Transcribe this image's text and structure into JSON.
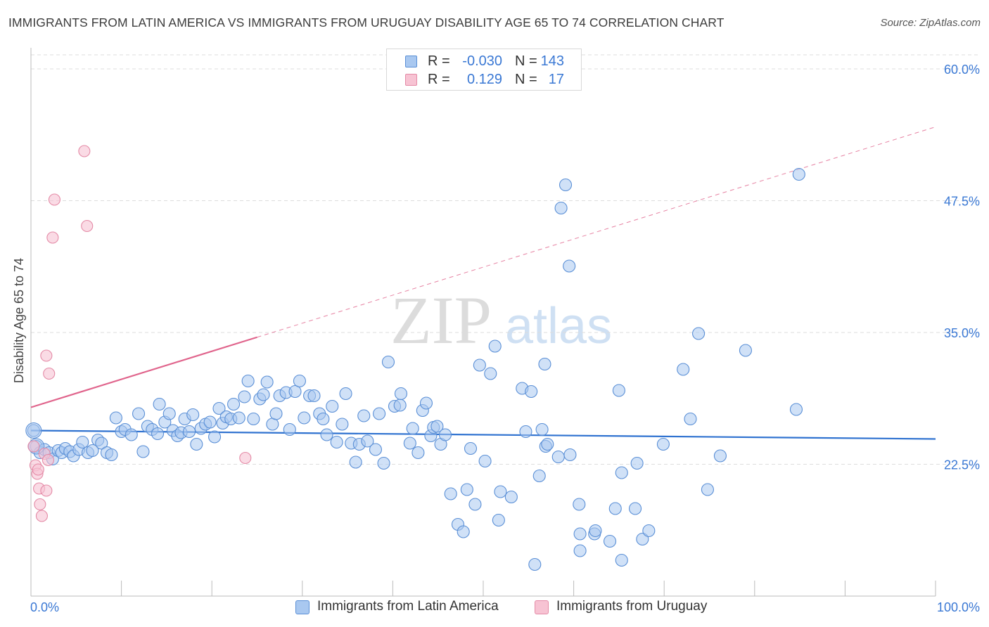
{
  "header": {
    "title": "IMMIGRANTS FROM LATIN AMERICA VS IMMIGRANTS FROM URUGUAY DISABILITY AGE 65 TO 74 CORRELATION CHART",
    "source": "Source: ZipAtlas.com"
  },
  "legend_top": {
    "rows": [
      {
        "r_label": "R =",
        "r_value": "-0.030",
        "n_label": "N =",
        "n_value": "143"
      },
      {
        "r_label": "R =",
        "r_value": "0.129",
        "n_label": "N =",
        "n_value": "17"
      }
    ]
  },
  "legend_bottom": {
    "items": [
      {
        "label": "Immigrants from Latin America"
      },
      {
        "label": "Immigrants from Uruguay"
      }
    ]
  },
  "watermark": {
    "zip": "ZIP",
    "atlas": "atlas"
  },
  "chart_data": {
    "type": "scatter",
    "ylabel": "Disability Age 65 to 74",
    "xlim": [
      0,
      100
    ],
    "ylim": [
      10,
      62
    ],
    "x_tick_labels": [
      {
        "value": 0,
        "label": "0.0%"
      },
      {
        "value": 100,
        "label": "100.0%"
      }
    ],
    "y_tick_labels": [
      {
        "value": 22.5,
        "label": "22.5%"
      },
      {
        "value": 35.0,
        "label": "35.0%"
      },
      {
        "value": 47.5,
        "label": "47.5%"
      },
      {
        "value": 60.0,
        "label": "60.0%"
      }
    ],
    "colors": {
      "latin_fill": "#a9c8f0",
      "latin_stroke": "#5a8fd6",
      "latin_line": "#2f72d0",
      "uruguay_fill": "#f7c3d3",
      "uruguay_stroke": "#e48aa6",
      "uruguay_line": "#e0648c",
      "axis_label": "#3a78d4",
      "grid": "#dddddd"
    },
    "series": [
      {
        "name": "Immigrants from Latin America",
        "trend": {
          "x0": 0,
          "y0": 25.7,
          "x1": 100,
          "y1": 24.9
        },
        "points": [
          {
            "x": 0.3,
            "y": 25.7
          },
          {
            "x": 0.6,
            "y": 24.2
          },
          {
            "x": 1.0,
            "y": 23.6
          },
          {
            "x": 1.5,
            "y": 23.9
          },
          {
            "x": 2.0,
            "y": 23.6
          },
          {
            "x": 2.4,
            "y": 23.0
          },
          {
            "x": 3.0,
            "y": 23.8
          },
          {
            "x": 3.4,
            "y": 23.6
          },
          {
            "x": 3.8,
            "y": 24.0
          },
          {
            "x": 4.3,
            "y": 23.7
          },
          {
            "x": 4.7,
            "y": 23.3
          },
          {
            "x": 5.3,
            "y": 23.9
          },
          {
            "x": 5.7,
            "y": 24.6
          },
          {
            "x": 6.3,
            "y": 23.6
          },
          {
            "x": 6.8,
            "y": 23.8
          },
          {
            "x": 7.4,
            "y": 24.8
          },
          {
            "x": 7.8,
            "y": 24.5
          },
          {
            "x": 8.4,
            "y": 23.6
          },
          {
            "x": 8.9,
            "y": 23.4
          },
          {
            "x": 9.4,
            "y": 26.9
          },
          {
            "x": 10.0,
            "y": 25.6
          },
          {
            "x": 10.4,
            "y": 25.8
          },
          {
            "x": 11.1,
            "y": 25.3
          },
          {
            "x": 11.9,
            "y": 27.3
          },
          {
            "x": 12.4,
            "y": 23.7
          },
          {
            "x": 12.9,
            "y": 26.1
          },
          {
            "x": 13.4,
            "y": 25.8
          },
          {
            "x": 14.0,
            "y": 25.4
          },
          {
            "x": 14.2,
            "y": 28.2
          },
          {
            "x": 14.8,
            "y": 26.5
          },
          {
            "x": 15.3,
            "y": 27.3
          },
          {
            "x": 15.7,
            "y": 25.7
          },
          {
            "x": 16.2,
            "y": 25.2
          },
          {
            "x": 16.6,
            "y": 25.5
          },
          {
            "x": 17.0,
            "y": 26.8
          },
          {
            "x": 17.5,
            "y": 25.6
          },
          {
            "x": 17.9,
            "y": 27.2
          },
          {
            "x": 18.3,
            "y": 24.4
          },
          {
            "x": 18.8,
            "y": 25.9
          },
          {
            "x": 19.3,
            "y": 26.3
          },
          {
            "x": 19.8,
            "y": 26.5
          },
          {
            "x": 20.3,
            "y": 25.1
          },
          {
            "x": 20.8,
            "y": 27.8
          },
          {
            "x": 21.2,
            "y": 26.4
          },
          {
            "x": 21.6,
            "y": 27.0
          },
          {
            "x": 22.1,
            "y": 26.8
          },
          {
            "x": 22.4,
            "y": 28.2
          },
          {
            "x": 23.0,
            "y": 26.9
          },
          {
            "x": 23.6,
            "y": 28.9
          },
          {
            "x": 24.0,
            "y": 30.4
          },
          {
            "x": 24.6,
            "y": 26.8
          },
          {
            "x": 25.3,
            "y": 28.7
          },
          {
            "x": 25.7,
            "y": 29.1
          },
          {
            "x": 26.1,
            "y": 30.3
          },
          {
            "x": 26.7,
            "y": 26.3
          },
          {
            "x": 27.1,
            "y": 27.3
          },
          {
            "x": 27.5,
            "y": 29.0
          },
          {
            "x": 28.2,
            "y": 29.3
          },
          {
            "x": 28.6,
            "y": 25.8
          },
          {
            "x": 29.2,
            "y": 29.4
          },
          {
            "x": 29.7,
            "y": 30.4
          },
          {
            "x": 30.2,
            "y": 26.9
          },
          {
            "x": 30.8,
            "y": 29.0
          },
          {
            "x": 31.3,
            "y": 29.0
          },
          {
            "x": 31.9,
            "y": 27.3
          },
          {
            "x": 32.3,
            "y": 26.8
          },
          {
            "x": 32.7,
            "y": 25.3
          },
          {
            "x": 33.3,
            "y": 28.0
          },
          {
            "x": 33.8,
            "y": 24.6
          },
          {
            "x": 34.4,
            "y": 26.3
          },
          {
            "x": 34.8,
            "y": 29.2
          },
          {
            "x": 35.4,
            "y": 24.5
          },
          {
            "x": 35.9,
            "y": 22.7
          },
          {
            "x": 36.3,
            "y": 24.4
          },
          {
            "x": 36.8,
            "y": 27.1
          },
          {
            "x": 37.2,
            "y": 24.7
          },
          {
            "x": 38.1,
            "y": 23.9
          },
          {
            "x": 38.5,
            "y": 27.3
          },
          {
            "x": 39.0,
            "y": 22.6
          },
          {
            "x": 39.5,
            "y": 32.2
          },
          {
            "x": 40.2,
            "y": 28.0
          },
          {
            "x": 40.8,
            "y": 28.1
          },
          {
            "x": 40.9,
            "y": 29.2
          },
          {
            "x": 41.9,
            "y": 24.5
          },
          {
            "x": 42.2,
            "y": 25.9
          },
          {
            "x": 42.8,
            "y": 23.6
          },
          {
            "x": 43.3,
            "y": 27.6
          },
          {
            "x": 43.7,
            "y": 28.3
          },
          {
            "x": 44.2,
            "y": 25.2
          },
          {
            "x": 44.5,
            "y": 26.0
          },
          {
            "x": 44.9,
            "y": 26.1
          },
          {
            "x": 45.3,
            "y": 24.4
          },
          {
            "x": 45.8,
            "y": 25.3
          },
          {
            "x": 46.4,
            "y": 19.7
          },
          {
            "x": 47.2,
            "y": 16.8
          },
          {
            "x": 47.8,
            "y": 16.1
          },
          {
            "x": 48.2,
            "y": 20.1
          },
          {
            "x": 48.6,
            "y": 24.0
          },
          {
            "x": 49.1,
            "y": 18.7
          },
          {
            "x": 49.6,
            "y": 31.9
          },
          {
            "x": 50.2,
            "y": 22.8
          },
          {
            "x": 50.8,
            "y": 31.1
          },
          {
            "x": 51.3,
            "y": 33.7
          },
          {
            "x": 51.7,
            "y": 17.2
          },
          {
            "x": 51.9,
            "y": 19.9
          },
          {
            "x": 53.1,
            "y": 19.4
          },
          {
            "x": 54.3,
            "y": 29.7
          },
          {
            "x": 54.7,
            "y": 25.6
          },
          {
            "x": 55.3,
            "y": 29.4
          },
          {
            "x": 55.7,
            "y": 13.0
          },
          {
            "x": 56.2,
            "y": 21.4
          },
          {
            "x": 56.5,
            "y": 25.8
          },
          {
            "x": 56.8,
            "y": 32.0
          },
          {
            "x": 56.9,
            "y": 24.2
          },
          {
            "x": 57.1,
            "y": 24.4
          },
          {
            "x": 58.3,
            "y": 23.2
          },
          {
            "x": 58.6,
            "y": 46.8
          },
          {
            "x": 59.1,
            "y": 49.0
          },
          {
            "x": 59.5,
            "y": 41.3
          },
          {
            "x": 59.6,
            "y": 23.4
          },
          {
            "x": 60.6,
            "y": 18.7
          },
          {
            "x": 60.7,
            "y": 14.3
          },
          {
            "x": 60.7,
            "y": 15.9
          },
          {
            "x": 62.3,
            "y": 15.9
          },
          {
            "x": 62.4,
            "y": 16.2
          },
          {
            "x": 64.0,
            "y": 15.2
          },
          {
            "x": 65.3,
            "y": 13.4
          },
          {
            "x": 66.8,
            "y": 18.3
          },
          {
            "x": 67.0,
            "y": 22.6
          },
          {
            "x": 67.6,
            "y": 15.4
          },
          {
            "x": 68.3,
            "y": 16.2
          },
          {
            "x": 69.9,
            "y": 24.4
          },
          {
            "x": 72.1,
            "y": 31.5
          },
          {
            "x": 72.9,
            "y": 26.8
          },
          {
            "x": 74.8,
            "y": 20.1
          },
          {
            "x": 76.2,
            "y": 23.3
          },
          {
            "x": 79.0,
            "y": 33.3
          },
          {
            "x": 84.9,
            "y": 50.0
          },
          {
            "x": 84.6,
            "y": 27.7
          },
          {
            "x": 65.0,
            "y": 29.5
          },
          {
            "x": 65.3,
            "y": 21.7
          },
          {
            "x": 64.6,
            "y": 18.3
          },
          {
            "x": 73.8,
            "y": 34.9
          }
        ]
      },
      {
        "name": "Immigrants from Uruguay",
        "trend": {
          "x0": 0,
          "y0": 27.9,
          "x1": 100,
          "y1": 54.5,
          "solid_until": 25
        },
        "points": [
          {
            "x": 0.3,
            "y": 24.2
          },
          {
            "x": 0.5,
            "y": 22.4
          },
          {
            "x": 0.7,
            "y": 21.6
          },
          {
            "x": 0.9,
            "y": 20.2
          },
          {
            "x": 1.0,
            "y": 18.7
          },
          {
            "x": 1.2,
            "y": 17.6
          },
          {
            "x": 1.7,
            "y": 20.0
          },
          {
            "x": 1.7,
            "y": 32.8
          },
          {
            "x": 2.0,
            "y": 31.1
          },
          {
            "x": 2.4,
            "y": 44.0
          },
          {
            "x": 2.6,
            "y": 47.6
          },
          {
            "x": 5.9,
            "y": 52.2
          },
          {
            "x": 6.2,
            "y": 45.1
          },
          {
            "x": 23.7,
            "y": 23.1
          },
          {
            "x": 0.8,
            "y": 22.0
          },
          {
            "x": 1.5,
            "y": 23.5
          },
          {
            "x": 1.9,
            "y": 22.9
          }
        ]
      }
    ]
  }
}
